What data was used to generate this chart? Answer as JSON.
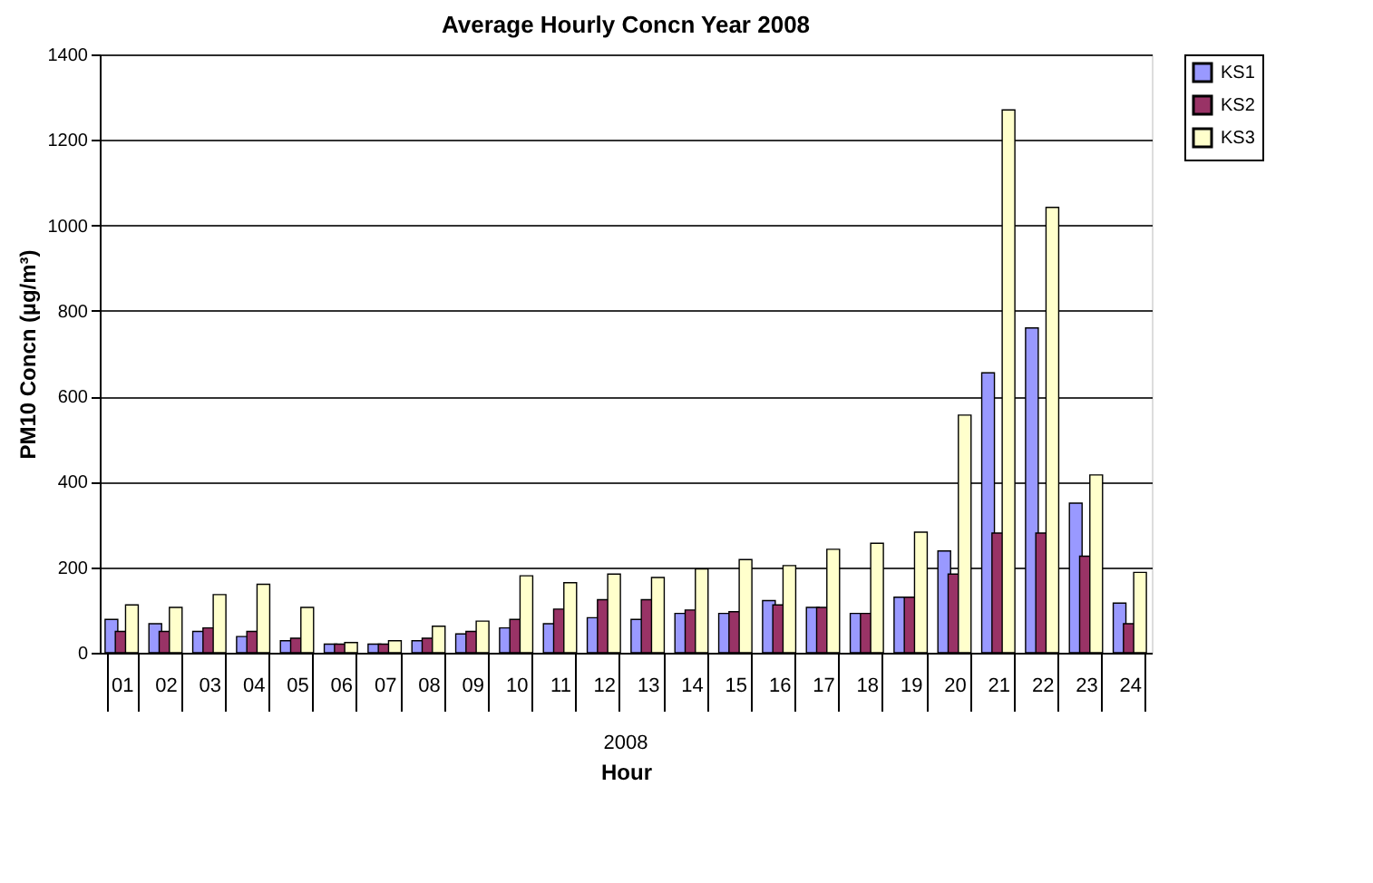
{
  "chart_data": {
    "type": "bar",
    "title": "Average Hourly Concn Year 2008",
    "xlabel": "Hour",
    "ylabel": "PM10 Concn (µg/m³)",
    "categories": [
      "01",
      "02",
      "03",
      "04",
      "05",
      "06",
      "07",
      "08",
      "09",
      "10",
      "11",
      "12",
      "13",
      "14",
      "15",
      "16",
      "17",
      "18",
      "19",
      "20",
      "21",
      "22",
      "23",
      "24"
    ],
    "series": [
      {
        "name": "KS1",
        "color": "#9999ff",
        "values": [
          78,
          68,
          50,
          38,
          28,
          20,
          20,
          28,
          44,
          58,
          68,
          82,
          78,
          92,
          92,
          122,
          106,
          92,
          130,
          238,
          655,
          760,
          350,
          116
        ]
      },
      {
        "name": "KS2",
        "color": "#993366",
        "values": [
          50,
          50,
          58,
          50,
          34,
          20,
          20,
          34,
          50,
          78,
          102,
          124,
          124,
          100,
          96,
          112,
          106,
          92,
          130,
          184,
          280,
          280,
          226,
          68
        ]
      },
      {
        "name": "KS3",
        "color": "#ffffcc",
        "values": [
          112,
          106,
          136,
          160,
          106,
          24,
          28,
          62,
          74,
          180,
          164,
          184,
          176,
          196,
          218,
          204,
          242,
          256,
          282,
          556,
          1270,
          1042,
          416,
          188
        ]
      }
    ],
    "ylim": [
      0,
      1400
    ],
    "yticks": [
      0,
      200,
      400,
      600,
      800,
      1000,
      1200,
      1400
    ],
    "grid": "y",
    "legend": "right",
    "annotations": [
      "2008"
    ]
  }
}
